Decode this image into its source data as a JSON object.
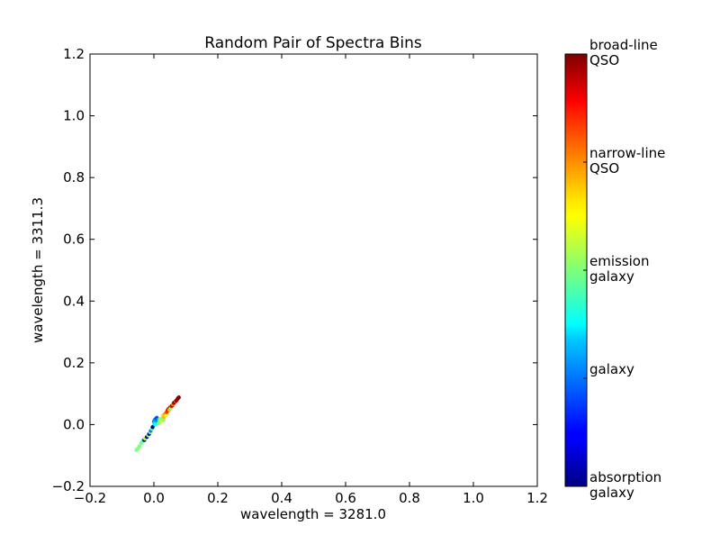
{
  "chart_data": {
    "type": "scatter",
    "title": "Random Pair of Spectra Bins",
    "xlabel": "wavelength = 3281.0",
    "ylabel": "wavelength = 3311.3",
    "xlim": [
      -0.2,
      1.2
    ],
    "ylim": [
      -0.2,
      1.2
    ],
    "xticks": [
      "−0.2",
      "0.0",
      "0.2",
      "0.4",
      "0.6",
      "0.8",
      "1.0",
      "1.2"
    ],
    "yticks": [
      "−0.2",
      "0.0",
      "0.2",
      "0.4",
      "0.6",
      "0.8",
      "1.0",
      "1.2"
    ],
    "xtick_values": [
      -0.2,
      0.0,
      0.2,
      0.4,
      0.6,
      0.8,
      1.0,
      1.2
    ],
    "ytick_values": [
      -0.2,
      0.0,
      0.2,
      0.4,
      0.6,
      0.8,
      1.0,
      1.2
    ],
    "grid": false,
    "colormap": "jet",
    "colorbar": {
      "labels": [
        {
          "line1": "broad-line",
          "line2": "QSO",
          "level": 1.0
        },
        {
          "line1": "narrow-line",
          "line2": "QSO",
          "level": 0.75
        },
        {
          "line1": "emission",
          "line2": "galaxy",
          "level": 0.5
        },
        {
          "line1": "galaxy",
          "line2": "",
          "level": 0.25
        },
        {
          "line1": "absorption",
          "line2": "galaxy",
          "level": 0.0
        }
      ]
    },
    "points": [
      {
        "x": -0.05,
        "y": -0.078,
        "c": 0.5
      },
      {
        "x": -0.055,
        "y": -0.082,
        "c": 0.5
      },
      {
        "x": -0.045,
        "y": -0.07,
        "c": 0.5
      },
      {
        "x": -0.04,
        "y": -0.06,
        "c": 0.5
      },
      {
        "x": -0.035,
        "y": -0.052,
        "c": 0.45
      },
      {
        "x": -0.03,
        "y": -0.05,
        "c": 0.0
      },
      {
        "x": -0.028,
        "y": -0.045,
        "c": 0.55
      },
      {
        "x": -0.022,
        "y": -0.04,
        "c": 0.0
      },
      {
        "x": -0.018,
        "y": -0.035,
        "c": 0.5
      },
      {
        "x": -0.015,
        "y": -0.03,
        "c": 0.0
      },
      {
        "x": -0.012,
        "y": -0.025,
        "c": 0.5
      },
      {
        "x": -0.01,
        "y": -0.02,
        "c": 0.25
      },
      {
        "x": -0.006,
        "y": -0.014,
        "c": 0.5
      },
      {
        "x": -0.004,
        "y": -0.008,
        "c": 0.0
      },
      {
        "x": 0.0,
        "y": 0.01,
        "c": 0.25
      },
      {
        "x": 0.002,
        "y": 0.015,
        "c": 0.25
      },
      {
        "x": 0.004,
        "y": 0.012,
        "c": 0.3
      },
      {
        "x": 0.006,
        "y": 0.018,
        "c": 0.25
      },
      {
        "x": 0.008,
        "y": 0.008,
        "c": 0.25
      },
      {
        "x": 0.01,
        "y": 0.014,
        "c": 0.28
      },
      {
        "x": 0.003,
        "y": 0.004,
        "c": 0.32
      },
      {
        "x": 0.007,
        "y": 0.02,
        "c": 0.22
      },
      {
        "x": 0.012,
        "y": 0.01,
        "c": 0.25
      },
      {
        "x": 0.001,
        "y": 0.002,
        "c": 0.35
      },
      {
        "x": 0.009,
        "y": 0.022,
        "c": 0.2
      },
      {
        "x": 0.014,
        "y": 0.016,
        "c": 0.3
      },
      {
        "x": 0.005,
        "y": 0.0,
        "c": 0.4
      },
      {
        "x": 0.015,
        "y": 0.005,
        "c": 0.5
      },
      {
        "x": 0.018,
        "y": 0.012,
        "c": 0.45
      },
      {
        "x": 0.02,
        "y": 0.018,
        "c": 0.55
      },
      {
        "x": 0.022,
        "y": 0.01,
        "c": 0.6
      },
      {
        "x": 0.025,
        "y": 0.02,
        "c": 0.5
      },
      {
        "x": 0.028,
        "y": 0.03,
        "c": 0.65
      },
      {
        "x": 0.03,
        "y": 0.015,
        "c": 0.5
      },
      {
        "x": 0.032,
        "y": 0.025,
        "c": 0.7
      },
      {
        "x": 0.035,
        "y": 0.035,
        "c": 0.75
      },
      {
        "x": 0.038,
        "y": 0.03,
        "c": 0.6
      },
      {
        "x": 0.04,
        "y": 0.04,
        "c": 0.8
      },
      {
        "x": 0.042,
        "y": 0.045,
        "c": 0.85
      },
      {
        "x": 0.045,
        "y": 0.05,
        "c": 0.9
      },
      {
        "x": 0.048,
        "y": 0.048,
        "c": 0.7
      },
      {
        "x": 0.05,
        "y": 0.055,
        "c": 0.95
      },
      {
        "x": 0.052,
        "y": 0.052,
        "c": 0.5
      },
      {
        "x": 0.055,
        "y": 0.06,
        "c": 0.85
      },
      {
        "x": 0.058,
        "y": 0.062,
        "c": 1.0
      },
      {
        "x": 0.06,
        "y": 0.065,
        "c": 0.75
      },
      {
        "x": 0.062,
        "y": 0.07,
        "c": 0.9
      },
      {
        "x": 0.065,
        "y": 0.072,
        "c": 1.0
      },
      {
        "x": 0.068,
        "y": 0.075,
        "c": 0.8
      },
      {
        "x": 0.07,
        "y": 0.078,
        "c": 1.0
      },
      {
        "x": 0.072,
        "y": 0.08,
        "c": 0.95
      },
      {
        "x": 0.075,
        "y": 0.085,
        "c": 1.0
      },
      {
        "x": 0.078,
        "y": 0.088,
        "c": 1.0
      }
    ]
  }
}
